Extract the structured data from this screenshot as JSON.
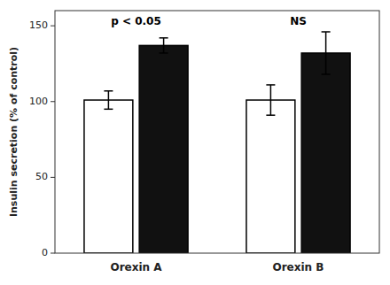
{
  "chart_data": {
    "type": "bar",
    "categories": [
      "Orexin A",
      "Orexin B"
    ],
    "series": [
      {
        "color": "#ffffff",
        "values": [
          101,
          101
        ],
        "errors": [
          6,
          10
        ]
      },
      {
        "color": "#111111",
        "values": [
          137,
          132
        ],
        "errors": [
          5,
          14
        ]
      }
    ],
    "y_label": "Insulin secretion (% of control)",
    "ylim": [
      0,
      160
    ],
    "yticks": [
      0,
      50,
      100,
      150
    ],
    "grid": false,
    "annotations": [
      {
        "text": "p < 0.05",
        "category": "Orexin A",
        "y": 149
      },
      {
        "text": "NS",
        "category": "Orexin B",
        "y": 149
      }
    ]
  }
}
